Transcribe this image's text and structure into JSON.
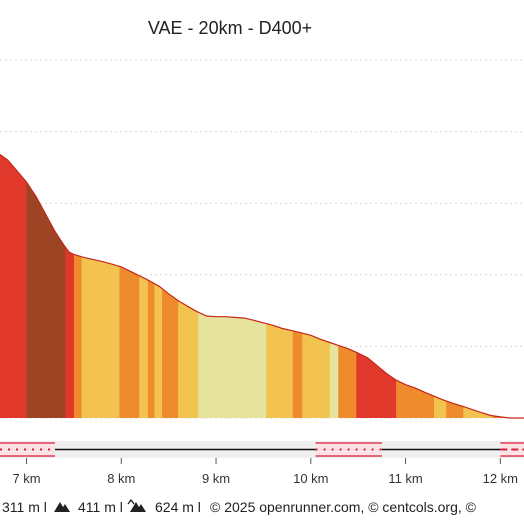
{
  "chart_data": {
    "type": "area",
    "title": "VAE - 20km - D400+",
    "xlabel": "",
    "ylabel": "",
    "x_unit": "km",
    "xlim": [
      6.72,
      12.25
    ],
    "ylim": [
      0,
      100
    ],
    "x_ticks": [
      {
        "value": 7,
        "label": "7 km"
      },
      {
        "value": 8,
        "label": "8 km"
      },
      {
        "value": 9,
        "label": "9 km"
      },
      {
        "value": 10,
        "label": "10 km"
      },
      {
        "value": 11,
        "label": "11 km"
      },
      {
        "value": 12,
        "label": "12 km"
      }
    ],
    "profile": {
      "x": [
        6.72,
        6.8,
        6.9,
        7.0,
        7.1,
        7.2,
        7.3,
        7.4,
        7.45,
        7.5,
        7.6,
        7.7,
        7.8,
        7.9,
        8.0,
        8.1,
        8.2,
        8.3,
        8.4,
        8.5,
        8.6,
        8.7,
        8.8,
        8.9,
        9.0,
        9.1,
        9.2,
        9.3,
        9.4,
        9.5,
        9.6,
        9.7,
        9.8,
        9.9,
        10.0,
        10.1,
        10.2,
        10.3,
        10.4,
        10.5,
        10.6,
        10.7,
        10.8,
        10.9,
        11.0,
        11.1,
        11.2,
        11.3,
        11.4,
        11.5,
        11.6,
        11.7,
        11.8,
        11.9,
        12.0,
        12.1,
        12.25
      ],
      "y": [
        73.6,
        72.1,
        69.0,
        65.9,
        61.9,
        57.0,
        52.1,
        48.1,
        46.3,
        45.7,
        44.9,
        44.3,
        43.7,
        43.0,
        42.2,
        40.9,
        39.6,
        38.3,
        36.8,
        34.7,
        32.8,
        31.2,
        29.7,
        28.5,
        28.3,
        28.3,
        28.1,
        27.9,
        27.3,
        26.6,
        25.9,
        25.0,
        24.4,
        23.8,
        23.1,
        22.0,
        21.1,
        20.2,
        19.3,
        18.1,
        16.8,
        14.6,
        12.4,
        10.6,
        9.3,
        8.4,
        7.2,
        6.1,
        5.0,
        4.1,
        3.3,
        2.4,
        1.5,
        0.7,
        0.3,
        0.0,
        0.0
      ]
    },
    "grade_bands": [
      {
        "x0": 6.72,
        "x1": 7.0,
        "color": "#e0382a"
      },
      {
        "x0": 7.0,
        "x1": 7.41,
        "color": "#9d4424"
      },
      {
        "x0": 7.41,
        "x1": 7.5,
        "color": "#e0382a"
      },
      {
        "x0": 7.5,
        "x1": 7.58,
        "color": "#ee8b2d"
      },
      {
        "x0": 7.58,
        "x1": 7.98,
        "color": "#f2c44f"
      },
      {
        "x0": 7.98,
        "x1": 8.19,
        "color": "#ee8b2d"
      },
      {
        "x0": 8.19,
        "x1": 8.28,
        "color": "#f2c44f"
      },
      {
        "x0": 8.28,
        "x1": 8.35,
        "color": "#ee8b2d"
      },
      {
        "x0": 8.35,
        "x1": 8.43,
        "color": "#f2c44f"
      },
      {
        "x0": 8.43,
        "x1": 8.6,
        "color": "#ee8b2d"
      },
      {
        "x0": 8.6,
        "x1": 8.81,
        "color": "#f2c44f"
      },
      {
        "x0": 8.81,
        "x1": 9.53,
        "color": "#e5e39c"
      },
      {
        "x0": 9.53,
        "x1": 9.81,
        "color": "#f2c44f"
      },
      {
        "x0": 9.81,
        "x1": 9.91,
        "color": "#ee8b2d"
      },
      {
        "x0": 9.91,
        "x1": 10.2,
        "color": "#f2c44f"
      },
      {
        "x0": 10.2,
        "x1": 10.29,
        "color": "#e5e39c"
      },
      {
        "x0": 10.29,
        "x1": 10.48,
        "color": "#ee8b2d"
      },
      {
        "x0": 10.48,
        "x1": 10.9,
        "color": "#e0382a"
      },
      {
        "x0": 10.9,
        "x1": 11.3,
        "color": "#ee8b2d"
      },
      {
        "x0": 11.3,
        "x1": 11.43,
        "color": "#f2c44f"
      },
      {
        "x0": 11.43,
        "x1": 11.61,
        "color": "#ee8b2d"
      },
      {
        "x0": 11.61,
        "x1": 11.92,
        "color": "#f2c44f"
      },
      {
        "x0": 11.92,
        "x1": 12.15,
        "color": "#ee8b2d"
      },
      {
        "x0": 12.15,
        "x1": 12.25,
        "color": "#f2c44f"
      }
    ],
    "surface_segments": [
      {
        "x0": 6.72,
        "x1": 7.3,
        "style": "dotted-red"
      },
      {
        "x0": 7.3,
        "x1": 10.05,
        "style": "plain"
      },
      {
        "x0": 10.05,
        "x1": 10.75,
        "style": "dotted-red"
      },
      {
        "x0": 10.75,
        "x1": 12.0,
        "style": "plain"
      },
      {
        "x0": 12.0,
        "x1": 12.25,
        "style": "dashed-red"
      }
    ],
    "grid": true,
    "legend": "none"
  },
  "footer": {
    "min_elevation": "311 m l",
    "max_icon": "mountain-up-icon",
    "max_elevation": "411 m l",
    "gain_icon": "mountain-gain-icon",
    "gain": "624 m l",
    "credits": "© 2025 openrunner.com, © centcols.org, ©"
  }
}
